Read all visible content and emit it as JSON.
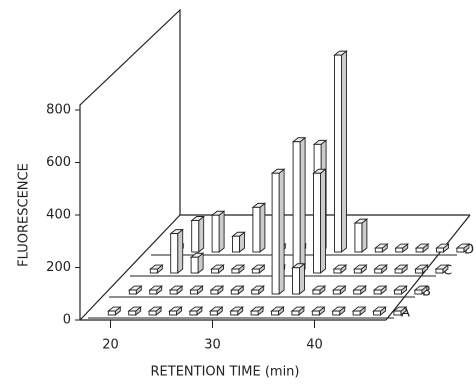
{
  "chart_data": {
    "type": "bar3d",
    "xlabel": "RETENTION TIME (min)",
    "ylabel": "FLUORESCENCE",
    "x": [
      19,
      21,
      23,
      25,
      27,
      29,
      31,
      33,
      35,
      37,
      39,
      41,
      43,
      45,
      47
    ],
    "series": [
      {
        "name": "A",
        "color": "#ffffff",
        "values": [
          15,
          15,
          15,
          15,
          15,
          15,
          15,
          15,
          15,
          15,
          15,
          15,
          15,
          15,
          15
        ]
      },
      {
        "name": "B",
        "color": "#ffffff",
        "values": [
          15,
          15,
          15,
          15,
          15,
          15,
          15,
          460,
          100,
          15,
          15,
          15,
          15,
          15,
          15
        ]
      },
      {
        "name": "C",
        "color": "#ffffff",
        "values": [
          15,
          150,
          60,
          15,
          15,
          15,
          15,
          500,
          380,
          15,
          15,
          15,
          15,
          15,
          15
        ]
      },
      {
        "name": "D",
        "color": "#ffffff",
        "values": [
          15,
          120,
          140,
          60,
          170,
          15,
          15,
          410,
          750,
          110,
          15,
          15,
          15,
          15,
          15
        ]
      }
    ],
    "xlim": [
      17.5,
      47.5
    ],
    "xticks": [
      20,
      30,
      40
    ],
    "ylim": [
      0,
      800
    ],
    "yticks": [
      0,
      200,
      400,
      600,
      800
    ]
  }
}
